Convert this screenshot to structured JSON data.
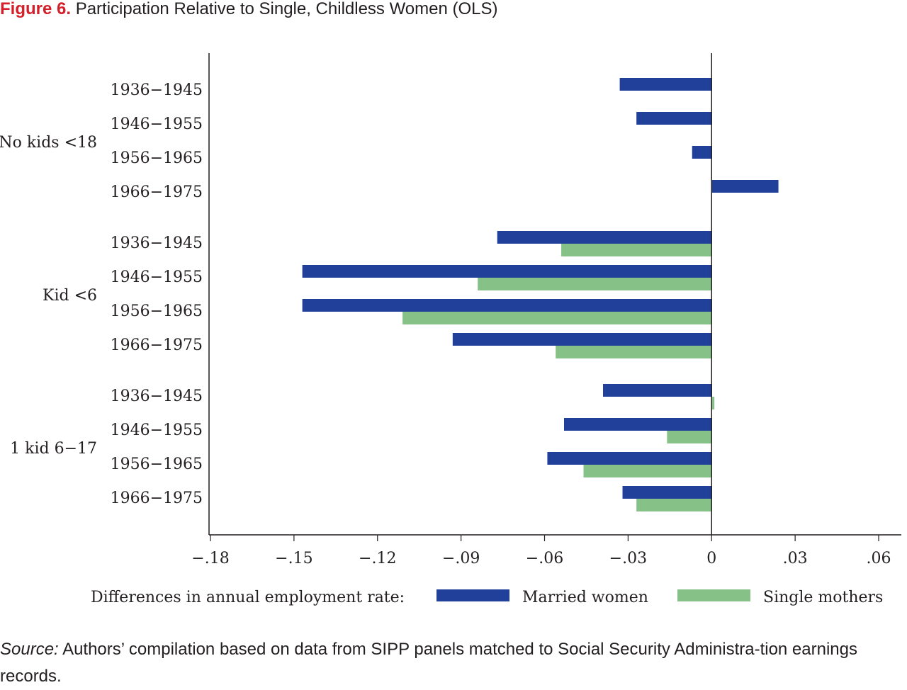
{
  "figure": {
    "label": "Figure 6.",
    "title": "Participation Relative to Single, Childless Women (OLS)"
  },
  "source": {
    "label": "Source:",
    "text": " Authors’ compilation based on data from SIPP panels matched to Social Security Administra-tion earnings records."
  },
  "colors": {
    "married": "#21409a",
    "single": "#86c187",
    "text": "#231f20",
    "figure_label": "#d4202a"
  },
  "chart_data": {
    "type": "bar",
    "orientation": "horizontal",
    "xlim": [
      -0.18,
      0.06
    ],
    "xticks": [
      -0.18,
      -0.15,
      -0.12,
      -0.09,
      -0.06,
      -0.03,
      0,
      0.03,
      0.06
    ],
    "xtick_labels": [
      "−.18",
      "−.15",
      "−.12",
      "−.09",
      "−.06",
      "−.03",
      "0",
      ".03",
      ".06"
    ],
    "groups": [
      {
        "name": "No kids <18",
        "categories": [
          "1936−1945",
          "1946−1955",
          "1956−1965",
          "1966−1975"
        ],
        "married": [
          -0.033,
          -0.027,
          -0.007,
          0.024
        ],
        "single": [
          null,
          null,
          null,
          null
        ]
      },
      {
        "name": "Kid <6",
        "categories": [
          "1936−1945",
          "1946−1955",
          "1956−1965",
          "1966−1975"
        ],
        "married": [
          -0.077,
          -0.147,
          -0.147,
          -0.093
        ],
        "single": [
          -0.054,
          -0.084,
          -0.111,
          -0.056
        ]
      },
      {
        "name": "1 kid 6−17",
        "categories": [
          "1936−1945",
          "1946−1955",
          "1956−1965",
          "1966−1975"
        ],
        "married": [
          -0.039,
          -0.053,
          -0.059,
          -0.032
        ],
        "single": [
          0.001,
          -0.016,
          -0.046,
          -0.027
        ]
      }
    ],
    "legend": {
      "title": "Differences in annual employment rate:",
      "position": "bottom",
      "series": [
        "Married women",
        "Single mothers"
      ]
    },
    "grid": false
  }
}
